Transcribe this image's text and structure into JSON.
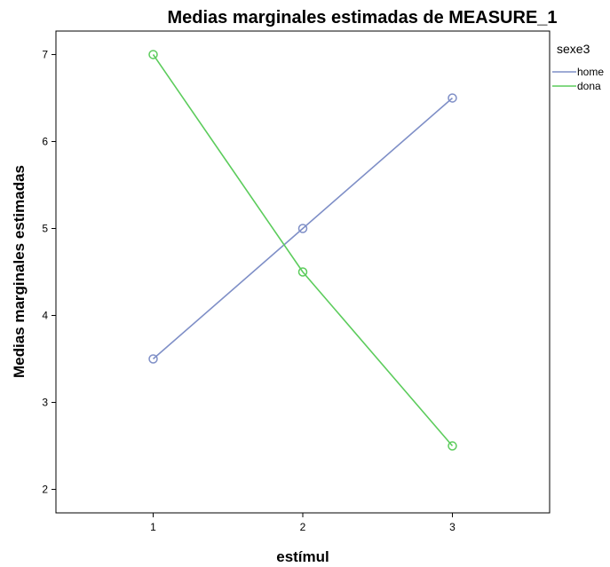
{
  "chart_data": {
    "type": "line",
    "title": "Medias marginales estimadas de MEASURE_1",
    "xlabel": "estímul",
    "ylabel": "Medias marginales estimadas",
    "categories": [
      "1",
      "2",
      "3"
    ],
    "x": [
      1,
      2,
      3
    ],
    "yticks": [
      2,
      3,
      4,
      5,
      6,
      7
    ],
    "ytick_labels": [
      "2",
      "3",
      "4",
      "5",
      "6",
      "7"
    ],
    "xlim": [
      0.35,
      3.65
    ],
    "ylim": [
      1.73,
      7.27
    ],
    "grid": false,
    "legend_title": "sexe3",
    "legend_position": "right",
    "series": [
      {
        "name": "home",
        "values": [
          3.5,
          5.0,
          6.5
        ],
        "color": "#7f8fc7"
      },
      {
        "name": "dona",
        "values": [
          7.0,
          4.5,
          2.5
        ],
        "color": "#5ccc5c"
      }
    ]
  }
}
